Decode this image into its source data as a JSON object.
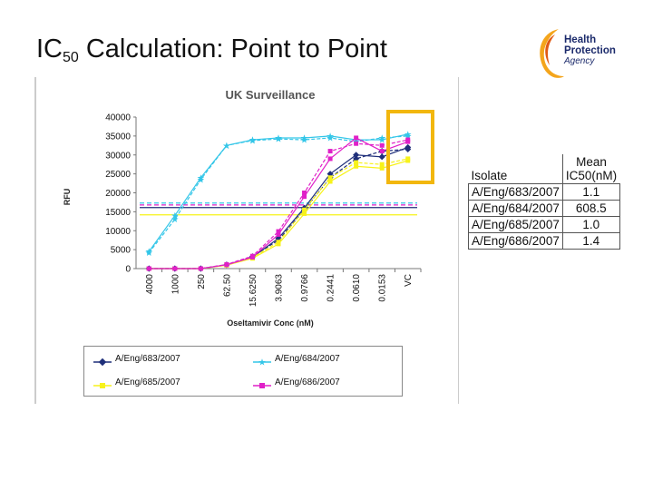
{
  "slide": {
    "title_main": "IC",
    "title_sub": "50",
    "title_rest": " Calculation: Point to Point",
    "logo": {
      "line1": "Health",
      "line2": "Protection",
      "line3": "Agency"
    }
  },
  "table": {
    "header_isolate": "Isolate",
    "header_mean_line1": "Mean",
    "header_mean_line2": "IC50(nM)",
    "rows": [
      {
        "isolate": "A/Eng/683/2007",
        "value": "1.1"
      },
      {
        "isolate": "A/Eng/684/2007",
        "value": "608.5"
      },
      {
        "isolate": "A/Eng/685/2007",
        "value": "1.0"
      },
      {
        "isolate": "A/Eng/686/2007",
        "value": "1.4"
      }
    ]
  },
  "chart_data": {
    "type": "line",
    "title": "UK Surveillance",
    "xlabel": "Oseltamivir Conc (nM)",
    "ylabel": "RFU",
    "ylim": [
      0,
      40000
    ],
    "yticks": [
      0,
      5000,
      10000,
      15000,
      20000,
      25000,
      30000,
      35000,
      40000
    ],
    "categories": [
      "4000",
      "1000",
      "250",
      "62.50",
      "15.6250",
      "3.9063",
      "0.9766",
      "0.2441",
      "0.0610",
      "0.0153",
      "VC"
    ],
    "grid": false,
    "legend_placement": "bottom",
    "series": [
      {
        "name": "A/Eng/683/2007",
        "color": "#1f2f7a",
        "marker": "diamond",
        "values": [
          0,
          0,
          0,
          1000,
          3000,
          8000,
          16000,
          25000,
          30000,
          29500,
          32000
        ],
        "values_dup": [
          0,
          0,
          0,
          1000,
          3200,
          7500,
          15500,
          24000,
          29000,
          31000,
          31500
        ],
        "threshold": 16100
      },
      {
        "name": "A/Eng/684/2007",
        "color": "#33c6e8",
        "marker": "star",
        "values": [
          4500,
          14000,
          24000,
          32500,
          34000,
          34500,
          34500,
          35000,
          34000,
          34000,
          35500
        ],
        "values_dup": [
          4200,
          13000,
          23500,
          32500,
          33800,
          34200,
          34000,
          34500,
          33500,
          34500,
          35000
        ],
        "threshold": 17300
      },
      {
        "name": "A/Eng/685/2007",
        "color": "#f7f21a",
        "marker": "square",
        "values": [
          0,
          0,
          0,
          900,
          2700,
          6500,
          14500,
          23000,
          27000,
          26500,
          28500
        ],
        "values_dup": [
          0,
          0,
          0,
          900,
          2900,
          7000,
          15500,
          24000,
          28000,
          27500,
          29000
        ],
        "threshold": 14200
      },
      {
        "name": "A/Eng/686/2007",
        "color": "#e020c8",
        "marker": "square",
        "values": [
          0,
          0,
          0,
          1000,
          3000,
          9000,
          19000,
          29000,
          34500,
          31000,
          33500
        ],
        "values_dup": [
          0,
          0,
          0,
          1100,
          3300,
          9800,
          20000,
          31000,
          33000,
          32500,
          34000
        ],
        "threshold": 16800
      }
    ]
  }
}
